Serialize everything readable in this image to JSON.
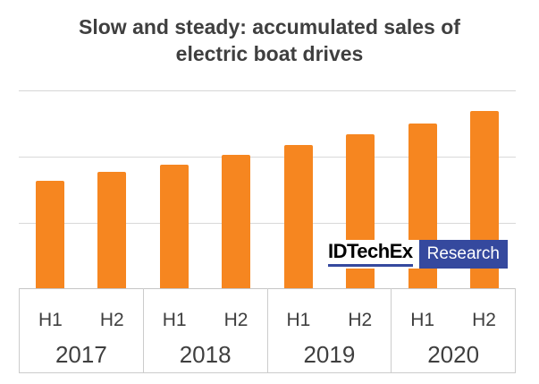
{
  "title": "Slow and steady: accumulated sales of electric boat drives",
  "logo": {
    "brand": "IDTechEx",
    "suffix": "Research"
  },
  "colors": {
    "bar_orange": "#f68620",
    "logo_blue": "#35499e",
    "title_gray": "#3f3f3f",
    "gridline_gray": "#d9d9d9"
  },
  "chart_data": {
    "type": "bar",
    "title": "Slow and steady: accumulated sales of electric boat drives",
    "categories": [
      "2017 H1",
      "2017 H2",
      "2018 H1",
      "2018 H2",
      "2019 H1",
      "2019 H2",
      "2020 H1",
      "2020 H2"
    ],
    "values": [
      1.64,
      1.77,
      1.88,
      2.03,
      2.18,
      2.35,
      2.51,
      2.7
    ],
    "ylim": [
      0,
      3
    ],
    "xlabel": "",
    "ylabel": "",
    "y_axis_tick_labels": [],
    "gridlines": "horizontal, 4 lines at 0,1,2,3 (unlabeled)",
    "legend": "none",
    "bar_color": "#f68620",
    "x_axis_groups": [
      {
        "year": "2017",
        "halves": [
          "H1",
          "H2"
        ]
      },
      {
        "year": "2018",
        "halves": [
          "H1",
          "H2"
        ]
      },
      {
        "year": "2019",
        "halves": [
          "H1",
          "H2"
        ]
      },
      {
        "year": "2020",
        "halves": [
          "H1",
          "H2"
        ]
      }
    ]
  }
}
